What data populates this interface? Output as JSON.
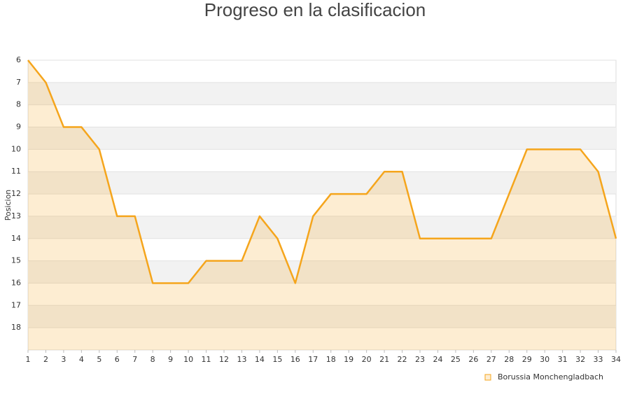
{
  "chart_data": {
    "type": "area-line",
    "title": "Progreso en la clasificacion",
    "y_label": "Posicion",
    "x": [
      1,
      2,
      3,
      4,
      5,
      6,
      7,
      8,
      9,
      10,
      11,
      12,
      13,
      14,
      15,
      16,
      17,
      18,
      19,
      20,
      21,
      22,
      23,
      24,
      25,
      26,
      27,
      28,
      29,
      30,
      31,
      32,
      33,
      34
    ],
    "series": [
      {
        "name": "Borussia Monchengladbach",
        "color": "#f5a51c",
        "values": [
          6,
          7,
          9,
          9,
          10,
          13,
          13,
          16,
          16,
          16,
          15,
          15,
          15,
          13,
          14,
          16,
          13,
          12,
          12,
          12,
          11,
          11,
          14,
          14,
          14,
          14,
          14,
          12,
          10,
          10,
          10,
          10,
          11,
          14
        ]
      }
    ],
    "xlim": [
      1,
      34
    ],
    "xticks": [
      1,
      2,
      3,
      4,
      5,
      6,
      7,
      8,
      9,
      10,
      11,
      12,
      13,
      14,
      15,
      16,
      17,
      18,
      19,
      20,
      21,
      22,
      23,
      24,
      25,
      26,
      27,
      28,
      29,
      30,
      31,
      32,
      33,
      34
    ],
    "ylim": [
      6,
      19
    ],
    "yticks": [
      6,
      7,
      8,
      9,
      10,
      11,
      12,
      13,
      14,
      15,
      16,
      17,
      18
    ],
    "y_inverted": true,
    "grid": true,
    "legend": "bottom-right"
  }
}
